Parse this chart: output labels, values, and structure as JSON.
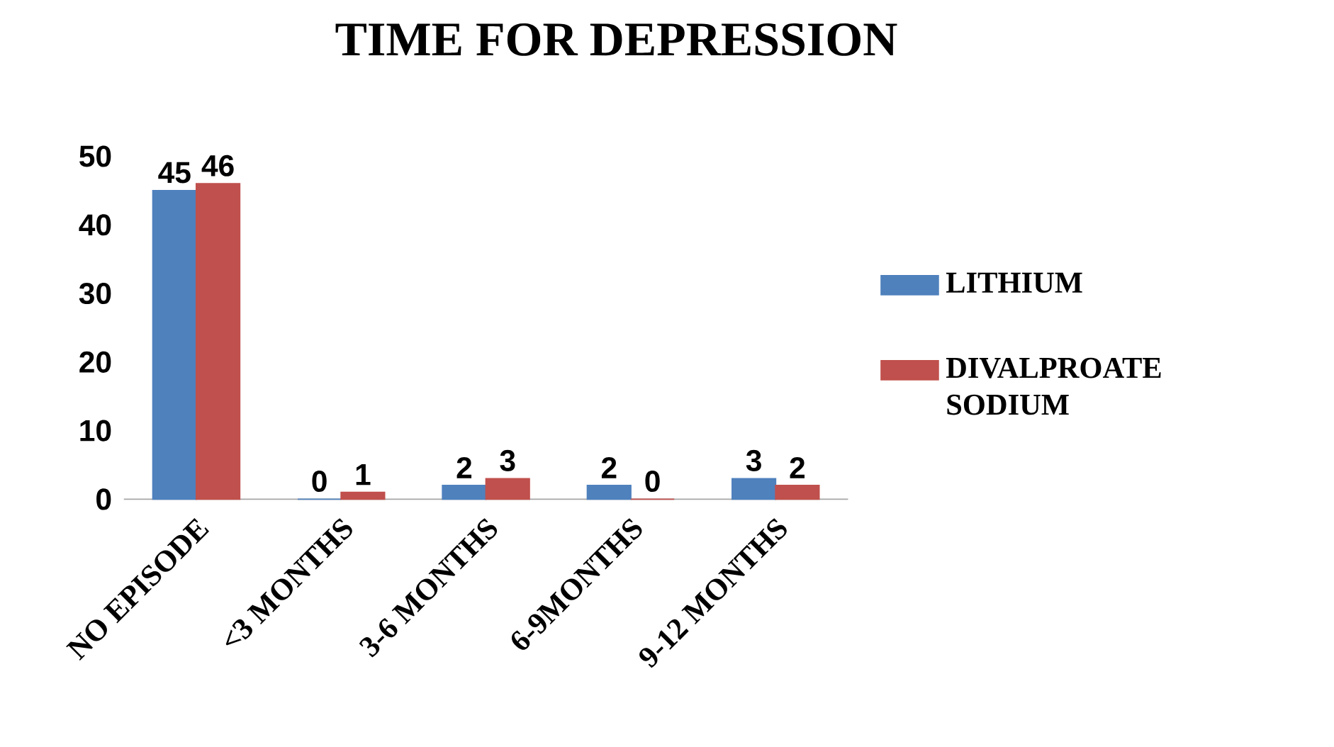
{
  "chart_data": {
    "type": "bar",
    "title": "TIME FOR DEPRESSION",
    "categories": [
      "NO EPISODE",
      "<3 MONTHS",
      "3-6 MONTHS",
      "6-9MONTHS",
      "9-12 MONTHS"
    ],
    "series": [
      {
        "name": "LITHIUM",
        "color": "#4f81bd",
        "values": [
          45,
          0,
          2,
          2,
          3
        ]
      },
      {
        "name": "DIVALPROATE SODIUM",
        "color": "#c0504d",
        "values": [
          46,
          1,
          3,
          0,
          2
        ]
      }
    ],
    "ylim": [
      0,
      50
    ],
    "yticks": [
      0,
      10,
      20,
      30,
      40,
      50
    ],
    "grid": false,
    "legend": "right",
    "data_labels": true
  }
}
